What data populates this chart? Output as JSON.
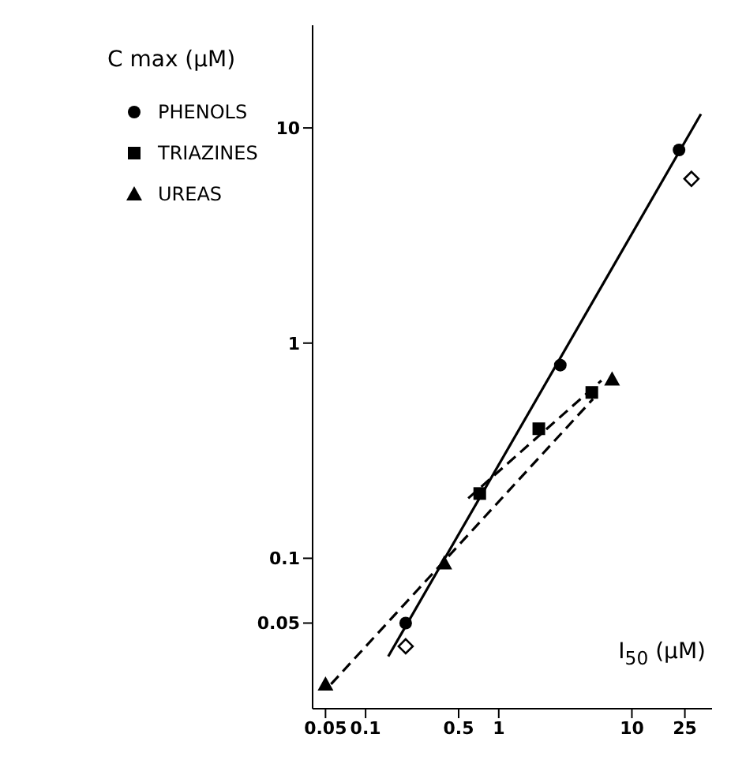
{
  "chart_data": {
    "type": "scatter",
    "ylabel": "C max (µM)",
    "xlabel": "I$_{50}$ (µM)",
    "log": "xy",
    "grid": false,
    "legend": "top left",
    "xlim": [
      0.04,
      40
    ],
    "xticks": [
      0.05,
      0.1,
      0.5,
      1,
      10,
      25
    ],
    "ylim": [
      0.02,
      30
    ],
    "yticks": [
      0.05,
      0.1,
      1,
      10
    ],
    "series": [
      {
        "name": "PHENOLS",
        "color": "#000000",
        "marker": "circle",
        "x": [
          0.2,
          2.9,
          22.6
        ],
        "values": [
          0.05,
          0.79,
          7.9
        ]
      },
      {
        "name": "TRIAZINES",
        "color": "#000000",
        "marker": "square",
        "x": [
          0.72,
          2.0,
          5.0
        ],
        "values": [
          0.2,
          0.4,
          0.59
        ]
      },
      {
        "name": "UREAS",
        "color": "#000000",
        "marker": "triangle",
        "x": [
          0.05,
          0.39,
          7.1
        ],
        "values": [
          0.026,
          0.095,
          0.68
        ]
      },
      {
        "color": "#000000",
        "marker": "diamond",
        "x": [
          0.2,
          28
        ],
        "values": [
          0.039,
          5.8
        ]
      },
      {
        "type": "line",
        "color": "#000000",
        "line_style": "solid",
        "marker": "none",
        "x": [
          0.148,
          33
        ],
        "values": [
          0.035,
          11.6
        ]
      },
      {
        "type": "line",
        "color": "#000000",
        "line_style": "dashed",
        "marker": "none",
        "x": [
          0.59,
          5.9
        ],
        "values": [
          0.19,
          0.67
        ]
      },
      {
        "type": "line",
        "color": "#000000",
        "line_style": "dashed",
        "marker": "none",
        "x": [
          0.055,
          5.1
        ],
        "values": [
          0.026,
          0.55
        ]
      }
    ]
  }
}
